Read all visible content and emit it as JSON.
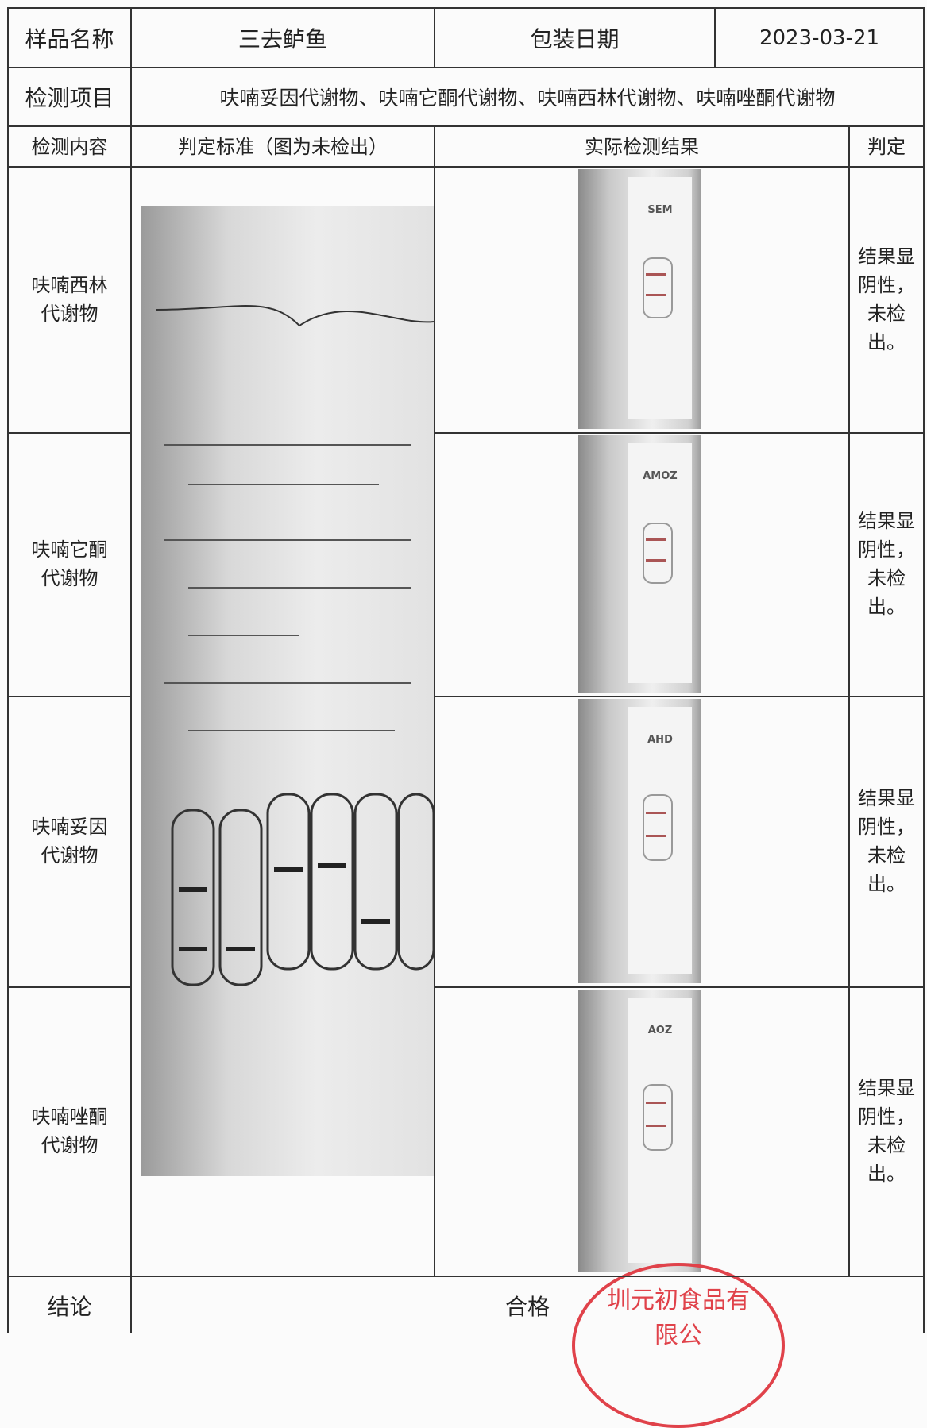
{
  "header": {
    "sample_name_label": "样品名称",
    "sample_name": "三去鲈鱼",
    "pack_date_label": "包装日期",
    "pack_date": "2023-03-21"
  },
  "items": {
    "label": "检测项目",
    "value": "呋喃妥因代谢物、呋喃它酮代谢物、呋喃西林代谢物、呋喃唑酮代谢物"
  },
  "columns": [
    "检测内容",
    "判定标准（图为未检出）",
    "实际检测结果",
    "判定"
  ],
  "rows": [
    {
      "content": "呋喃西林代谢物",
      "strip_label": "SEM",
      "verdict": "结果显阴性，未检出。"
    },
    {
      "content": "呋喃它酮代谢物",
      "strip_label": "AMOZ",
      "verdict": "结果显阴性，未检出。"
    },
    {
      "content": "呋喃妥因代谢物",
      "strip_label": "AHD",
      "verdict": "结果显阴性，未检出。"
    },
    {
      "content": "呋喃唑酮代谢物",
      "strip_label": "AOZ",
      "verdict": "结果显阴性，未检出。"
    }
  ],
  "conclusion": {
    "label": "结论",
    "value": "合格"
  },
  "stamp": "圳元初食品有限公"
}
